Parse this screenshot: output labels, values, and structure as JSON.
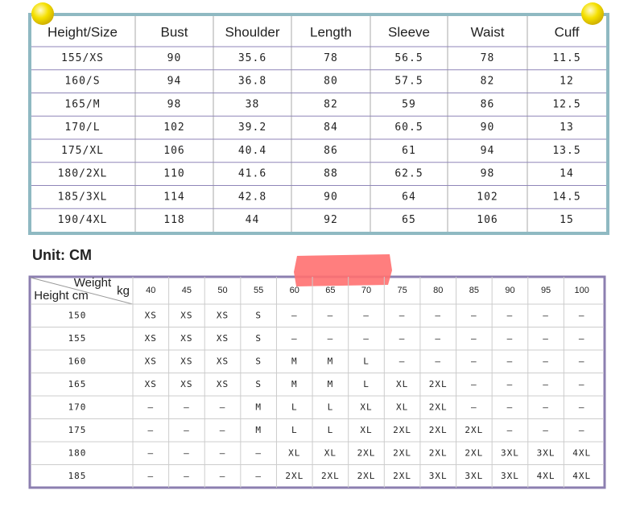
{
  "size_table": {
    "headers": [
      "Height/Size",
      "Bust",
      "Shoulder",
      "Length",
      "Sleeve",
      "Waist",
      "Cuff"
    ],
    "rows": [
      [
        "155/XS",
        "90",
        "35.6",
        "78",
        "56.5",
        "78",
        "11.5"
      ],
      [
        "160/S",
        "94",
        "36.8",
        "80",
        "57.5",
        "82",
        "12"
      ],
      [
        "165/M",
        "98",
        "38",
        "82",
        "59",
        "86",
        "12.5"
      ],
      [
        "170/L",
        "102",
        "39.2",
        "84",
        "60.5",
        "90",
        "13"
      ],
      [
        "175/XL",
        "106",
        "40.4",
        "86",
        "61",
        "94",
        "13.5"
      ],
      [
        "180/2XL",
        "110",
        "41.6",
        "88",
        "62.5",
        "98",
        "14"
      ],
      [
        "185/3XL",
        "114",
        "42.8",
        "90",
        "64",
        "102",
        "14.5"
      ],
      [
        "190/4XL",
        "118",
        "44",
        "92",
        "65",
        "106",
        "15"
      ]
    ]
  },
  "unit": "Unit: CM",
  "fit_table": {
    "weight_label": "Weight",
    "weight_unit": "kg",
    "height_label": "Height cm",
    "weights": [
      "40",
      "45",
      "50",
      "55",
      "60",
      "65",
      "70",
      "75",
      "80",
      "85",
      "90",
      "95",
      "100"
    ],
    "rows": [
      {
        "height": "150",
        "sizes": [
          "XS",
          "XS",
          "XS",
          "S",
          "–",
          "–",
          "–",
          "–",
          "–",
          "–",
          "–",
          "–",
          "–"
        ]
      },
      {
        "height": "155",
        "sizes": [
          "XS",
          "XS",
          "XS",
          "S",
          "–",
          "–",
          "–",
          "–",
          "–",
          "–",
          "–",
          "–",
          "–"
        ]
      },
      {
        "height": "160",
        "sizes": [
          "XS",
          "XS",
          "XS",
          "S",
          "M",
          "M",
          "L",
          "–",
          "–",
          "–",
          "–",
          "–",
          "–"
        ]
      },
      {
        "height": "165",
        "sizes": [
          "XS",
          "XS",
          "XS",
          "S",
          "M",
          "M",
          "L",
          "XL",
          "2XL",
          "–",
          "–",
          "–",
          "–"
        ]
      },
      {
        "height": "170",
        "sizes": [
          "–",
          "–",
          "–",
          "M",
          "L",
          "L",
          "XL",
          "XL",
          "2XL",
          "–",
          "–",
          "–",
          "–"
        ]
      },
      {
        "height": "175",
        "sizes": [
          "–",
          "–",
          "–",
          "M",
          "L",
          "L",
          "XL",
          "2XL",
          "2XL",
          "2XL",
          "–",
          "–",
          "–"
        ]
      },
      {
        "height": "180",
        "sizes": [
          "–",
          "–",
          "–",
          "–",
          "XL",
          "XL",
          "2XL",
          "2XL",
          "2XL",
          "2XL",
          "3XL",
          "3XL",
          "4XL"
        ]
      },
      {
        "height": "185",
        "sizes": [
          "–",
          "–",
          "–",
          "–",
          "2XL",
          "2XL",
          "2XL",
          "2XL",
          "3XL",
          "3XL",
          "3XL",
          "4XL",
          "4XL"
        ]
      }
    ]
  }
}
